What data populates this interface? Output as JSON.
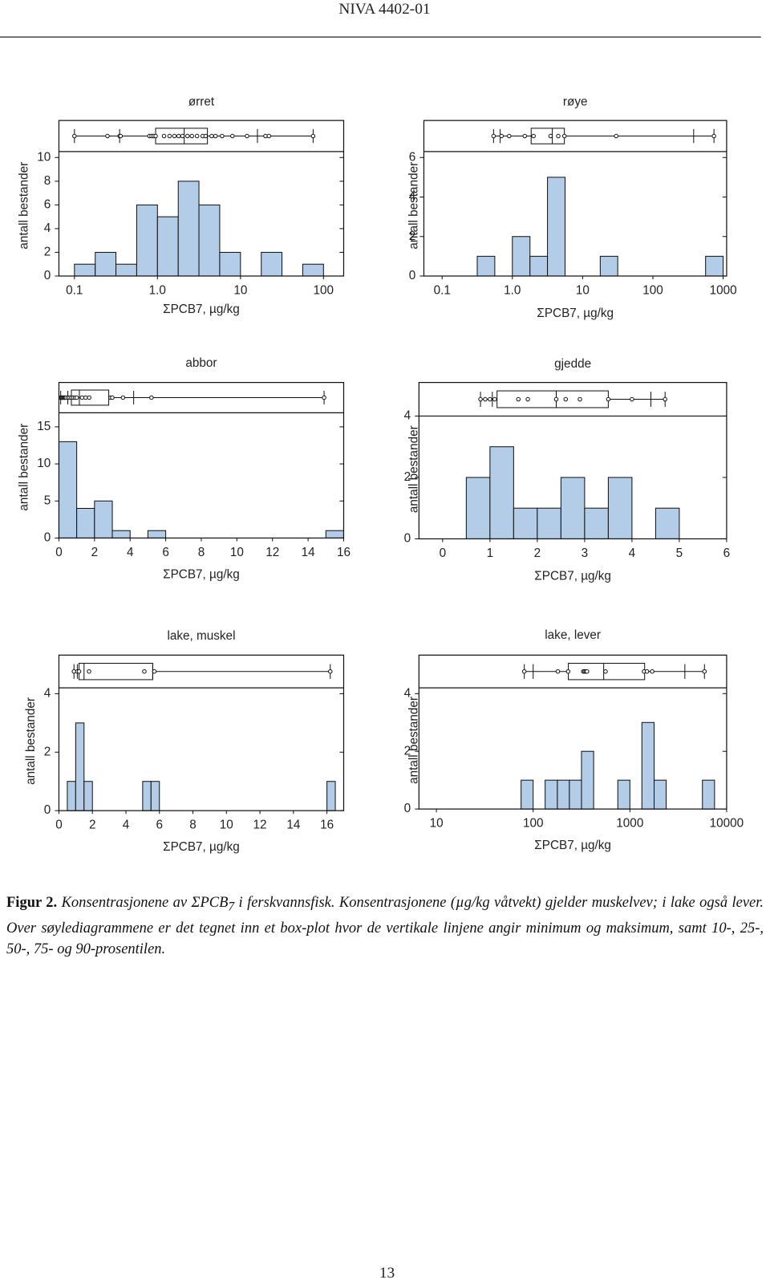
{
  "header": {
    "title": "NIVA 4402-01"
  },
  "chart_data": [
    {
      "type": "histogram",
      "title": "ørret",
      "xlabel": "ΣPCB7, µg/kg",
      "ylabel": "antall bestander",
      "xscale": "log",
      "color": "#b3cde9",
      "bins": [
        0.1,
        0.178,
        0.316,
        0.562,
        1,
        1.78,
        3.16,
        5.62,
        10,
        17.8,
        31.6,
        56.2,
        100
      ],
      "counts": [
        1,
        2,
        1,
        6,
        5,
        8,
        6,
        2,
        0,
        2,
        0,
        1
      ],
      "xlim": [
        0.065,
        175
      ],
      "xticks": [
        0.1,
        {
          "value": 1,
          "label": "1.0"
        },
        10,
        100
      ],
      "ylim": [
        0,
        10.5
      ],
      "yticks": [
        0,
        2,
        4,
        6,
        8,
        10
      ],
      "boxplot": {
        "min": 0.1,
        "p10": 0.35,
        "p25": 0.95,
        "median": 2.1,
        "p75": 4,
        "p90": 16,
        "max": 75
      },
      "points": [
        0.1,
        0.25,
        0.35,
        0.36,
        0.8,
        0.85,
        0.9,
        0.95,
        1.2,
        1.4,
        1.6,
        1.8,
        2.0,
        2.3,
        2.6,
        3,
        3.5,
        3.8,
        4.5,
        5,
        6,
        8,
        12,
        20,
        22,
        75
      ]
    },
    {
      "type": "histogram",
      "title": "røye",
      "xlabel": "ΣPCB7, µg/kg",
      "ylabel": "antall bestander",
      "xscale": "log",
      "color": "#b3cde9",
      "bins": [
        0.316,
        0.562,
        1,
        1.78,
        3.16,
        5.62,
        10,
        17.8,
        31.6,
        56.2,
        100,
        178,
        316,
        562,
        1000
      ],
      "counts": [
        1,
        0,
        2,
        1,
        5,
        0,
        0,
        1,
        0,
        0,
        0,
        0,
        0,
        1
      ],
      "xlim": [
        0.055,
        1120
      ],
      "xticks": [
        0.1,
        {
          "value": 1,
          "label": "1.0"
        },
        10,
        100,
        1000
      ],
      "ylim": [
        0,
        6.3
      ],
      "yticks": [
        0,
        2,
        4,
        6
      ],
      "boxplot": {
        "min": 0.54,
        "p10": 0.67,
        "p25": 1.85,
        "median": 3.7,
        "p75": 5.5,
        "p90": 380,
        "max": 740
      },
      "points": [
        0.54,
        0.7,
        0.9,
        1.5,
        2,
        3.5,
        4.5,
        5.5,
        30,
        740
      ]
    },
    {
      "type": "histogram",
      "title": "abbor",
      "xlabel": "ΣPCB7, µg/kg",
      "ylabel": "antall bestander",
      "xscale": "linear",
      "color": "#b3cde9",
      "bins": [
        0,
        1,
        2,
        3,
        4,
        5,
        6,
        7,
        8,
        9,
        10,
        11,
        12,
        13,
        14,
        15,
        16
      ],
      "counts": [
        13,
        4,
        5,
        1,
        0,
        1,
        0,
        0,
        0,
        0,
        0,
        0,
        0,
        0,
        0,
        1
      ],
      "xlim": [
        0,
        16
      ],
      "xticks": [
        0,
        2,
        4,
        6,
        8,
        10,
        12,
        14,
        16
      ],
      "ylim": [
        0,
        16.9
      ],
      "yticks": [
        0,
        5,
        10,
        15
      ],
      "boxplot": {
        "min": 0.1,
        "p10": 0.5,
        "p25": 0.7,
        "median": 1.15,
        "p75": 2.8,
        "p90": 4.2,
        "max": 14.9
      },
      "points": [
        0.1,
        0.15,
        0.2,
        0.25,
        0.3,
        0.35,
        0.4,
        0.5,
        0.6,
        0.7,
        0.8,
        0.9,
        1.0,
        1.3,
        1.5,
        1.7,
        2.9,
        3.0,
        3.6,
        5.2,
        14.9
      ]
    },
    {
      "type": "histogram",
      "title": "gjedde",
      "xlabel": "ΣPCB7, µg/kg",
      "ylabel": "antall bestander",
      "xscale": "linear",
      "color": "#b3cde9",
      "bins": [
        0.5,
        1,
        1.5,
        2,
        2.5,
        3,
        3.5,
        4,
        4.5,
        5
      ],
      "counts": [
        2,
        3,
        1,
        1,
        2,
        1,
        2,
        0,
        1
      ],
      "xlim": [
        -0.5,
        6
      ],
      "xticks": [
        0,
        1,
        2,
        3,
        4,
        5,
        6
      ],
      "ylim": [
        0,
        4
      ],
      "yticks": [
        0,
        2,
        4
      ],
      "boxplot": {
        "min": 0.8,
        "p10": 1.05,
        "p25": 1.15,
        "median": 2.4,
        "p75": 3.5,
        "p90": 4.4,
        "max": 4.7
      },
      "points": [
        0.8,
        0.9,
        1.0,
        1.1,
        1.6,
        1.8,
        2.4,
        2.6,
        2.9,
        3.5,
        4.0,
        4.7
      ]
    },
    {
      "type": "histogram",
      "title": "lake, muskel",
      "xlabel": "ΣPCB7, µg/kg",
      "ylabel": "antall bestander",
      "xscale": "linear",
      "color": "#b3cde9",
      "bins": [
        0.5,
        1,
        1.5,
        2,
        2.5,
        3,
        3.5,
        4,
        4.5,
        5,
        5.5,
        6,
        6.5,
        7,
        7.5,
        8,
        8.5,
        9,
        9.5,
        10,
        10.5,
        11,
        11.5,
        12,
        12.5,
        13,
        13.5,
        14,
        14.5,
        15,
        15.5,
        16,
        16.5
      ],
      "counts": [
        1,
        3,
        1,
        0,
        0,
        0,
        0,
        0,
        0,
        1,
        1,
        0,
        0,
        0,
        0,
        0,
        0,
        0,
        0,
        0,
        0,
        0,
        0,
        0,
        0,
        0,
        0,
        0,
        0,
        0,
        0,
        1
      ],
      "xlim": [
        0,
        17
      ],
      "xticks": [
        0,
        2,
        4,
        6,
        8,
        10,
        12,
        14,
        16
      ],
      "ylim": [
        0,
        4.2
      ],
      "yticks": [
        0,
        2,
        4
      ],
      "boxplot": {
        "min": 0.9,
        "p10": 1.1,
        "p25": 1.2,
        "median": 1.5,
        "p75": 5.6,
        "p90": 5.6,
        "max": 16.2
      },
      "points": [
        0.9,
        1.1,
        1.2,
        1.8,
        5.1,
        5.7,
        16.2
      ]
    },
    {
      "type": "histogram",
      "title": "lake, lever",
      "xlabel": "ΣPCB7, µg/kg",
      "ylabel": "antall bestander",
      "xscale": "log",
      "color": "#b3cde9",
      "bins": [
        75,
        100,
        133,
        178,
        237,
        316,
        422,
        562,
        750,
        1000,
        1330,
        1780,
        2370,
        3160,
        4220,
        5620,
        7500
      ],
      "counts": [
        1,
        0,
        1,
        1,
        1,
        2,
        0,
        0,
        1,
        0,
        3,
        1,
        0,
        0,
        0,
        1
      ],
      "xlim": [
        6.6,
        10000
      ],
      "xticks": [
        10,
        100,
        1000,
        10000
      ],
      "ylim": [
        0,
        4.2
      ],
      "yticks": [
        0,
        2,
        4
      ],
      "boxplot": {
        "min": 81,
        "p10": 100,
        "p25": 231,
        "median": 536,
        "p75": 1420,
        "p90": 3700,
        "max": 5900
      },
      "points": [
        81,
        180,
        230,
        330,
        340,
        350,
        360,
        560,
        1400,
        1500,
        1700,
        5900
      ]
    }
  ],
  "caption": {
    "label": "Figur 2.",
    "text_a": "Konsentrasjonene av ΣPCB",
    "subscript": "7",
    "text_b": " i ferskvannsfisk. Konsentrasjonene (µg/kg våtvekt) gjelder muskelvev; i lake også lever. Over søylediagrammene er det tegnet inn et box-plot hvor de vertikale linjene angir minimum og maksimum, samt 10-, 25-, 50-, 75- og 90-prosentilen."
  },
  "page_number": "13"
}
